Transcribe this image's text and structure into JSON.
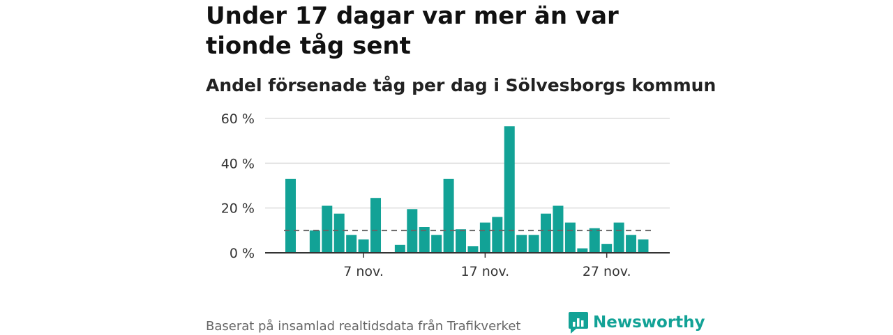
{
  "title": "Under 17 dagar var mer än var tionde tåg sent",
  "subtitle": "Andel försenade tåg per dag i Sölvesborgs kommun",
  "footer": {
    "source": "Baserat på insamlad realtidsdata från Trafikverket",
    "brand": "Newsworthy"
  },
  "colors": {
    "bar": "#12a296",
    "reference_line": "#666666",
    "grid": "#dddddd",
    "axis": "#333333"
  },
  "chart_data": {
    "type": "bar",
    "x": [
      "1 nov.",
      "2 nov.",
      "3 nov.",
      "4 nov.",
      "5 nov.",
      "6 nov.",
      "7 nov.",
      "8 nov.",
      "9 nov.",
      "10 nov.",
      "11 nov.",
      "12 nov.",
      "13 nov.",
      "14 nov.",
      "15 nov.",
      "16 nov.",
      "17 nov.",
      "18 nov.",
      "19 nov.",
      "20 nov.",
      "21 nov.",
      "22 nov.",
      "23 nov.",
      "24 nov.",
      "25 nov.",
      "26 nov.",
      "27 nov.",
      "28 nov.",
      "29 nov.",
      "30 nov."
    ],
    "values": [
      33,
      null,
      10,
      21,
      17.5,
      8,
      6,
      24.5,
      null,
      3.5,
      19.5,
      11.5,
      8,
      33,
      10.5,
      3,
      13.5,
      16,
      56.5,
      8,
      8,
      17.5,
      21,
      13.5,
      2,
      11,
      4,
      13.5,
      8,
      6
    ],
    "reference_value": 10,
    "ylim": [
      0,
      60
    ],
    "yticks": [
      0,
      20,
      40,
      60
    ],
    "ytick_labels": [
      "0 %",
      "20 %",
      "40 %",
      "60 %"
    ],
    "xtick_labels": [
      "7 nov.",
      "17 nov.",
      "27 nov."
    ],
    "xtick_index": [
      6,
      16,
      26
    ],
    "grid": true,
    "title": "Andel försenade tåg per dag i Sölvesborgs kommun",
    "xlabel": "",
    "ylabel": ""
  }
}
